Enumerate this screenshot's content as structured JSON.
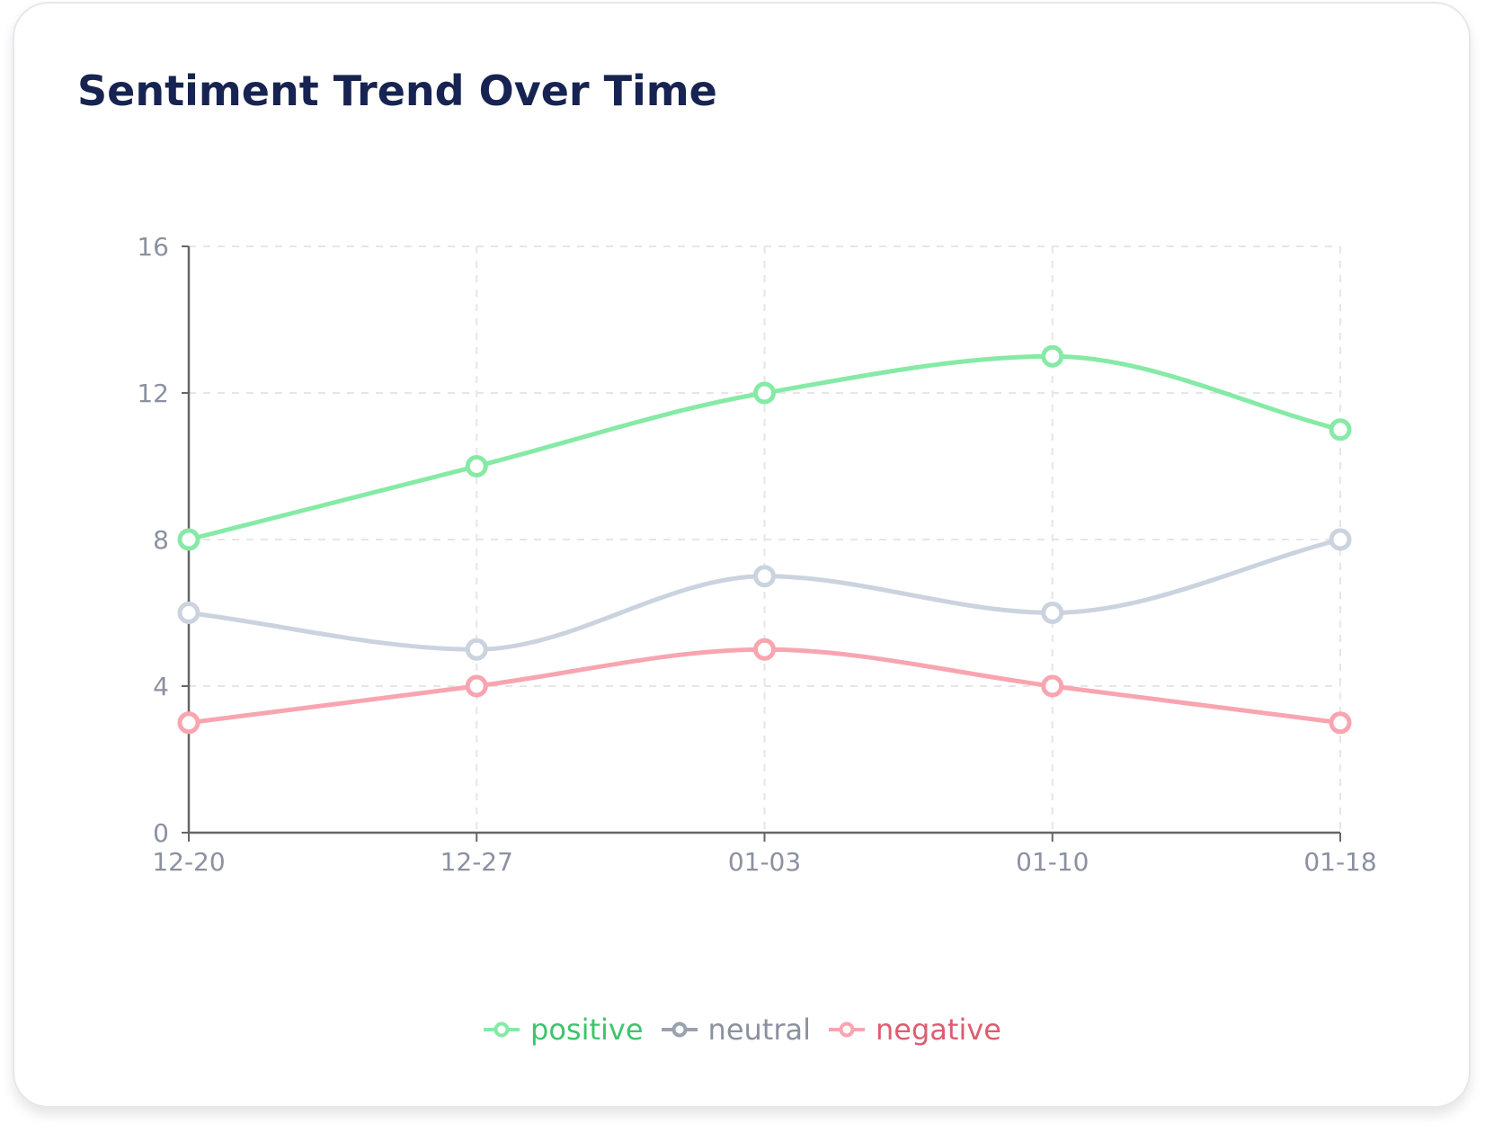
{
  "chart_data": {
    "type": "line",
    "title": "Sentiment Trend Over Time",
    "xlabel": "",
    "ylabel": "",
    "categories": [
      "12-20",
      "12-27",
      "01-03",
      "01-10",
      "01-18"
    ],
    "ylim": [
      0,
      16
    ],
    "yticks": [
      "0",
      "4",
      "8",
      "12",
      "16"
    ],
    "grid": true,
    "legend_position": "bottom-center",
    "series": [
      {
        "name": "positive",
        "values": [
          8,
          10,
          12,
          13,
          11
        ],
        "color": "#86eaa6",
        "label_color": "#3ec46d"
      },
      {
        "name": "neutral",
        "values": [
          6,
          5,
          7,
          6,
          8
        ],
        "color": "#cbd3df",
        "marker_color": "#9aa1b1",
        "label_color": "#8b91a1"
      },
      {
        "name": "negative",
        "values": [
          3,
          4,
          5,
          4,
          3
        ],
        "color": "#f8a5b0",
        "label_color": "#db5e70"
      }
    ]
  }
}
